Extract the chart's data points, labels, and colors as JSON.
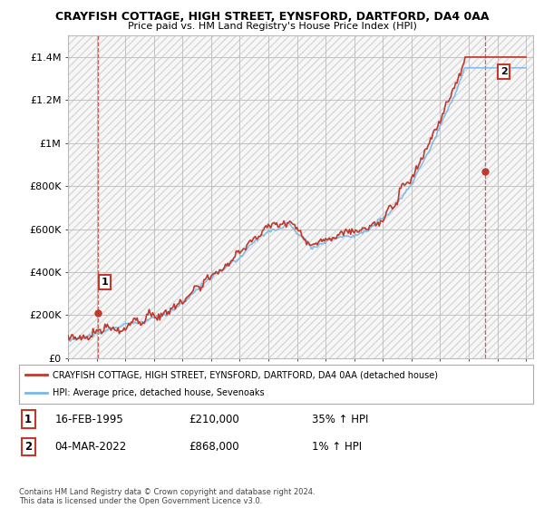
{
  "title1": "CRAYFISH COTTAGE, HIGH STREET, EYNSFORD, DARTFORD, DA4 0AA",
  "title2": "Price paid vs. HM Land Registry's House Price Index (HPI)",
  "ylim": [
    0,
    1500000
  ],
  "yticks": [
    0,
    200000,
    400000,
    600000,
    800000,
    1000000,
    1200000,
    1400000
  ],
  "ytick_labels": [
    "£0",
    "£200K",
    "£400K",
    "£600K",
    "£800K",
    "£1M",
    "£1.2M",
    "£1.4M"
  ],
  "hpi_color": "#7ab8e8",
  "price_color": "#c0392b",
  "sale1_x": 1995.12,
  "sale1_y": 210000,
  "sale2_x": 2022.17,
  "sale2_y": 868000,
  "sale1_label": "16-FEB-1995",
  "sale1_price": "£210,000",
  "sale1_hpi": "35% ↑ HPI",
  "sale2_label": "04-MAR-2022",
  "sale2_price": "£868,000",
  "sale2_hpi": "1% ↑ HPI",
  "legend_line1": "CRAYFISH COTTAGE, HIGH STREET, EYNSFORD, DARTFORD, DA4 0AA (detached house)",
  "legend_line2": "HPI: Average price, detached house, Sevenoaks",
  "footnote": "Contains HM Land Registry data © Crown copyright and database right 2024.\nThis data is licensed under the Open Government Licence v3.0.",
  "bg_color": "#f0f0f0",
  "hatch_color": "#d8d8d8",
  "grid_color": "#bbbbbb",
  "xlim_left": 1993.0,
  "xlim_right": 2025.5
}
